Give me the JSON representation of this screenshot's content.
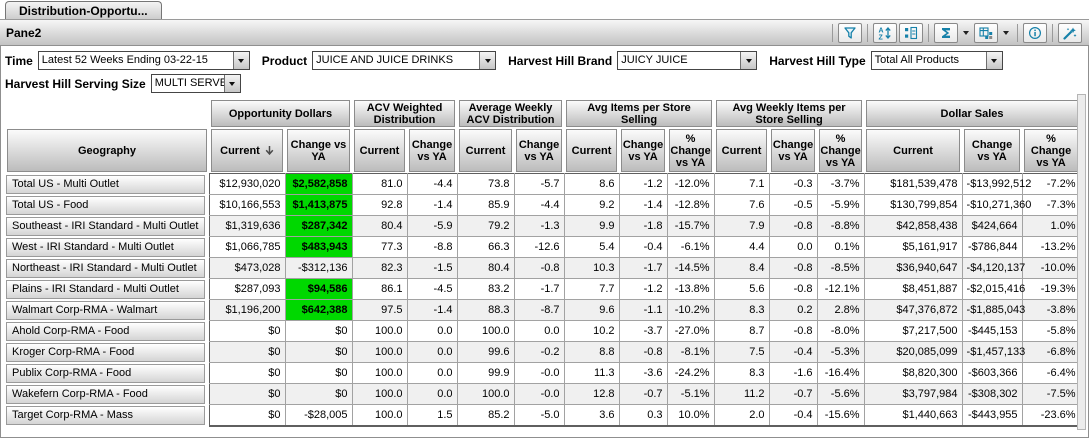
{
  "tab_title": "Distribution-Opportu...",
  "pane_title": "Pane2",
  "colors": {
    "icon_teal": "#1681a9",
    "highlight_green": "#00d800",
    "row_band": "#f0f0f0"
  },
  "toolbar": {
    "icons": [
      "funnel",
      "sort-az",
      "select-items",
      "sigma",
      "grid-view",
      "info",
      "wizard"
    ]
  },
  "filters": [
    {
      "label": "Time",
      "value": "Latest 52 Weeks Ending 03-22-15"
    },
    {
      "label": "Product",
      "value": "JUICE AND JUICE DRINKS"
    },
    {
      "label": "Harvest Hill Brand",
      "value": "JUICY JUICE"
    },
    {
      "label": "Harvest Hill Type",
      "value": "Total All Products"
    },
    {
      "label": "Harvest Hill Serving Size",
      "value": "MULTI SERVE"
    }
  ],
  "table": {
    "row_dimension_label": "Geography",
    "column_groups": [
      {
        "label": "Opportunity Dollars",
        "columns": [
          {
            "label": "Current",
            "sort": "desc"
          },
          {
            "label": "Change vs YA"
          }
        ]
      },
      {
        "label": "ACV Weighted Distribution",
        "columns": [
          {
            "label": "Current"
          },
          {
            "label": "Change vs YA"
          }
        ]
      },
      {
        "label": "Average Weekly ACV Distribution",
        "columns": [
          {
            "label": "Current"
          },
          {
            "label": "Change vs YA"
          }
        ]
      },
      {
        "label": "Avg Items per Store Selling",
        "columns": [
          {
            "label": "Current"
          },
          {
            "label": "Change vs YA"
          },
          {
            "label": "% Change vs YA"
          }
        ]
      },
      {
        "label": "Avg Weekly Items per Store Selling",
        "columns": [
          {
            "label": "Current"
          },
          {
            "label": "Change vs YA"
          },
          {
            "label": "% Change vs YA"
          }
        ]
      },
      {
        "label": "Dollar Sales",
        "columns": [
          {
            "label": "Current"
          },
          {
            "label": "Change vs YA"
          },
          {
            "label": "% Change vs YA"
          }
        ]
      }
    ],
    "rows": [
      {
        "geography": "Total US - Multi Outlet",
        "highlight": true,
        "values": [
          "$12,930,020",
          "$2,582,858",
          "81.0",
          "-4.4",
          "73.8",
          "-5.7",
          "8.6",
          "-1.2",
          "-12.0%",
          "7.1",
          "-0.3",
          "-3.7%",
          "$181,539,478",
          "-$13,992,512",
          "-7.2%"
        ]
      },
      {
        "geography": "Total US - Food",
        "highlight": true,
        "values": [
          "$10,166,553",
          "$1,413,875",
          "92.8",
          "-1.4",
          "85.9",
          "-4.4",
          "9.2",
          "-1.4",
          "-12.8%",
          "7.6",
          "-0.5",
          "-5.9%",
          "$130,799,854",
          "-$10,271,360",
          "-7.3%"
        ]
      },
      {
        "geography": "Southeast - IRI Standard - Multi Outlet",
        "highlight": true,
        "values": [
          "$1,319,636",
          "$287,342",
          "80.4",
          "-5.9",
          "79.2",
          "-1.3",
          "9.9",
          "-1.8",
          "-15.7%",
          "7.9",
          "-0.8",
          "-8.8%",
          "$42,858,438",
          "$424,664",
          "1.0%"
        ]
      },
      {
        "geography": "West - IRI Standard - Multi Outlet",
        "highlight": true,
        "values": [
          "$1,066,785",
          "$483,943",
          "77.3",
          "-8.8",
          "66.3",
          "-12.6",
          "5.4",
          "-0.4",
          "-6.1%",
          "4.4",
          "0.0",
          "0.1%",
          "$5,161,917",
          "-$786,844",
          "-13.2%"
        ]
      },
      {
        "geography": "Northeast - IRI Standard - Multi Outlet",
        "highlight": false,
        "values": [
          "$473,028",
          "-$312,136",
          "82.3",
          "-1.5",
          "80.4",
          "-0.8",
          "10.3",
          "-1.7",
          "-14.5%",
          "8.4",
          "-0.8",
          "-8.5%",
          "$36,940,647",
          "-$4,120,137",
          "-10.0%"
        ]
      },
      {
        "geography": "Plains - IRI Standard - Multi Outlet",
        "highlight": true,
        "values": [
          "$287,093",
          "$94,586",
          "86.1",
          "-4.5",
          "83.2",
          "-1.7",
          "7.7",
          "-1.2",
          "-13.8%",
          "5.6",
          "-0.8",
          "-12.1%",
          "$8,451,887",
          "-$2,015,416",
          "-19.3%"
        ]
      },
      {
        "geography": "Walmart Corp-RMA - Walmart",
        "highlight": true,
        "values": [
          "$1,196,200",
          "$642,388",
          "97.5",
          "-1.4",
          "88.3",
          "-8.7",
          "9.6",
          "-1.1",
          "-10.2%",
          "8.3",
          "0.2",
          "2.8%",
          "$47,376,872",
          "-$1,885,043",
          "-3.8%"
        ]
      },
      {
        "geography": "Ahold Corp-RMA - Food",
        "highlight": false,
        "values": [
          "$0",
          "$0",
          "100.0",
          "0.0",
          "100.0",
          "0.0",
          "10.2",
          "-3.7",
          "-27.0%",
          "8.7",
          "-0.8",
          "-8.0%",
          "$7,217,500",
          "-$445,153",
          "-5.8%"
        ]
      },
      {
        "geography": "Kroger Corp-RMA - Food",
        "highlight": false,
        "values": [
          "$0",
          "$0",
          "100.0",
          "0.0",
          "99.6",
          "-0.2",
          "8.8",
          "-0.8",
          "-8.1%",
          "7.5",
          "-0.4",
          "-5.3%",
          "$20,085,099",
          "-$1,457,133",
          "-6.8%"
        ]
      },
      {
        "geography": "Publix Corp-RMA - Food",
        "highlight": false,
        "values": [
          "$0",
          "$0",
          "100.0",
          "0.0",
          "99.9",
          "-0.0",
          "11.3",
          "-3.6",
          "-24.2%",
          "8.3",
          "-1.6",
          "-16.4%",
          "$8,820,300",
          "-$603,366",
          "-6.4%"
        ]
      },
      {
        "geography": "Wakefern Corp-RMA - Food",
        "highlight": false,
        "values": [
          "$0",
          "$0",
          "100.0",
          "0.0",
          "100.0",
          "-0.0",
          "12.8",
          "-0.7",
          "-5.1%",
          "11.2",
          "-0.7",
          "-5.6%",
          "$3,797,984",
          "-$308,302",
          "-7.5%"
        ]
      },
      {
        "geography": "Target Corp-RMA - Mass",
        "highlight": false,
        "values": [
          "$0",
          "-$28,005",
          "100.0",
          "1.5",
          "85.2",
          "-5.0",
          "3.6",
          "0.3",
          "10.0%",
          "2.0",
          "-0.4",
          "-15.6%",
          "$1,440,663",
          "-$443,955",
          "-23.6%"
        ]
      }
    ]
  }
}
